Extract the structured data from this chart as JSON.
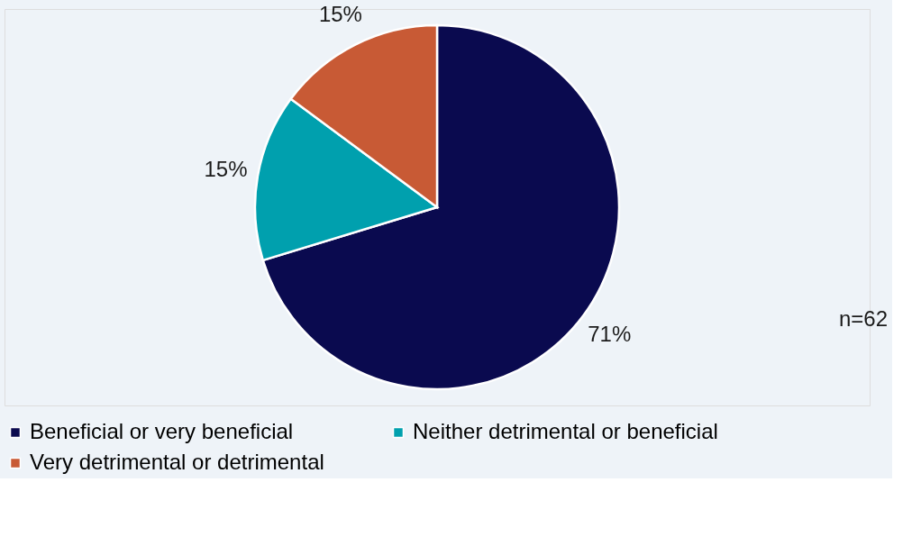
{
  "chart_data": {
    "type": "pie",
    "categories": [
      "Beneficial or very beneficial",
      "Neither detrimental or beneficial",
      "Very detrimental or detrimental"
    ],
    "values": [
      71,
      15,
      15
    ],
    "colors": [
      "#0a0a4f",
      "#00a0ae",
      "#c85a35"
    ],
    "value_labels": [
      "71%",
      "15%",
      "15%"
    ],
    "annotations": [
      "n=62"
    ],
    "legend": "bottom left"
  }
}
